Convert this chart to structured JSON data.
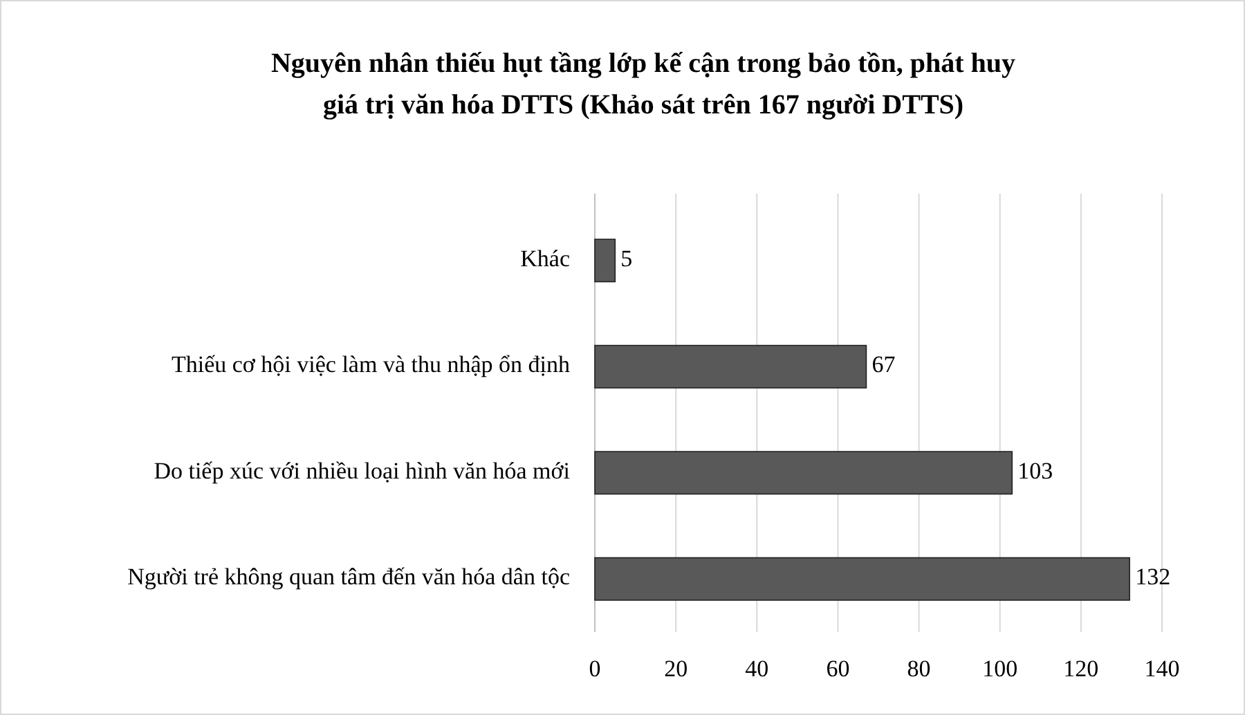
{
  "chart_data": {
    "type": "bar",
    "orientation": "horizontal",
    "title": "Nguyên nhân thiếu hụt tầng lớp kế cận trong bảo tồn, phát huy giá trị văn hóa DTTS (Khảo sát trên 167 người DTTS)",
    "categories": [
      "Khác",
      "Thiếu cơ hội việc làm và thu nhập ổn định",
      "Do tiếp xúc với nhiều loại hình văn hóa mới",
      "Người trẻ không quan tâm đến văn hóa dân tộc"
    ],
    "values": [
      5,
      67,
      103,
      132
    ],
    "color": "#595959",
    "data_labels": true,
    "xlim": [
      0,
      140
    ],
    "xticks": [
      0,
      20,
      40,
      60,
      80,
      100,
      120,
      140
    ],
    "grid": "x"
  }
}
